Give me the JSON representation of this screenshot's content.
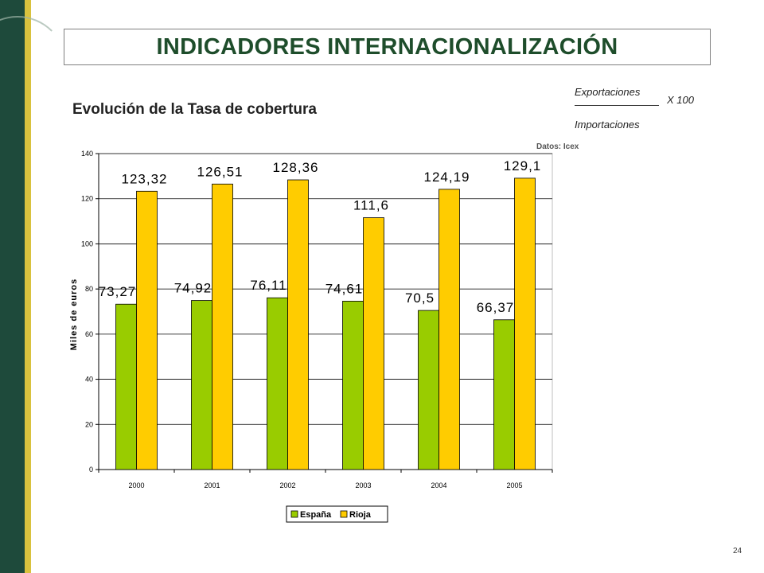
{
  "slide": {
    "title": "INDICADORES INTERNACIONALIZACIÓN",
    "subtitle": "Evolución de la Tasa de cobertura",
    "formula": {
      "numerator": "Exportaciones",
      "multiplier": "X  100",
      "denominator": "Importaciones"
    },
    "source": "Datos: Icex",
    "page_number": "24"
  },
  "colors": {
    "espana": "#99cc00",
    "rioja": "#ffcc00",
    "sidebar": "#1e4a3b",
    "stripe": "#d9c23e",
    "title": "#1e4d2b"
  },
  "chart_data": {
    "type": "bar",
    "categories": [
      "2000",
      "2001",
      "2002",
      "2003",
      "2004",
      "2005"
    ],
    "series": [
      {
        "name": "España",
        "values": [
          73.27,
          74.92,
          76.11,
          74.61,
          70.5,
          66.37
        ],
        "labels": [
          "73,27",
          "74,92",
          "76,11",
          "74,61",
          "70,5",
          "66,37"
        ]
      },
      {
        "name": "Rioja",
        "values": [
          123.32,
          126.51,
          128.36,
          111.6,
          124.19,
          129.1
        ],
        "labels": [
          "123,32",
          "126,51",
          "128,36",
          "111,6",
          "124,19",
          "129,1"
        ]
      }
    ],
    "ylabel": "Miles de euros",
    "ylim": [
      0,
      140
    ],
    "yticks": [
      0,
      20,
      40,
      60,
      80,
      100,
      120,
      140
    ],
    "grid": true,
    "legend": "bottom"
  }
}
